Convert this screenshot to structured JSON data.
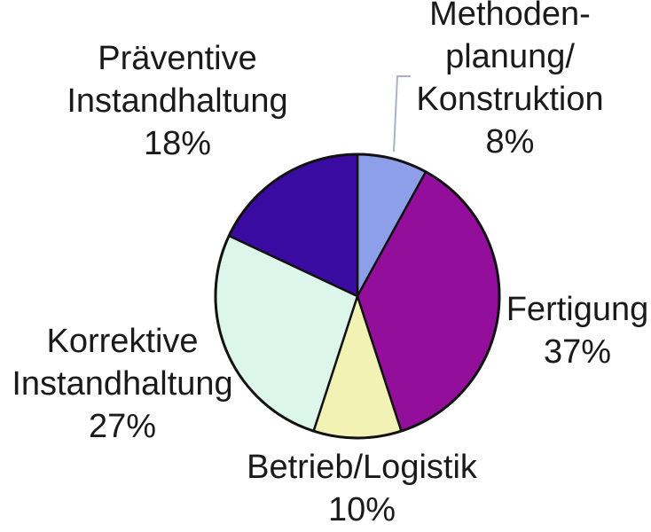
{
  "page": {
    "background": "#ffffff",
    "text_color": "#1a1a1a"
  },
  "chart_data": {
    "type": "pie",
    "title": "",
    "unit": "%",
    "start_angle_deg": 0,
    "direction": "clockwise",
    "legend_position": "none",
    "outline_color": "#121212",
    "leader_line_color": "#a9b2c4",
    "slices": [
      {
        "label": "Methodenplanung/Konstruktion",
        "value": 8,
        "color": "#8c9fe8",
        "display_lines": [
          "Methoden-",
          "planung/",
          "Konstruktion",
          "8%"
        ]
      },
      {
        "label": "Fertigung",
        "value": 37,
        "color": "#930f9b",
        "display_lines": [
          "Fertigung",
          "37%"
        ]
      },
      {
        "label": "Betrieb/Logistik",
        "value": 10,
        "color": "#f2f2b5",
        "display_lines": [
          "Betrieb/Logistik",
          "10%"
        ]
      },
      {
        "label": "Korrektive Instandhaltung",
        "value": 27,
        "color": "#dcf6ec",
        "display_lines": [
          "Korrektive",
          "Instandhaltung",
          "27%"
        ]
      },
      {
        "label": "Präventive Instandhaltung",
        "value": 18,
        "color": "#3a0ba0",
        "display_lines": [
          "Präventive",
          "Instandhaltung",
          "18%"
        ]
      }
    ]
  }
}
